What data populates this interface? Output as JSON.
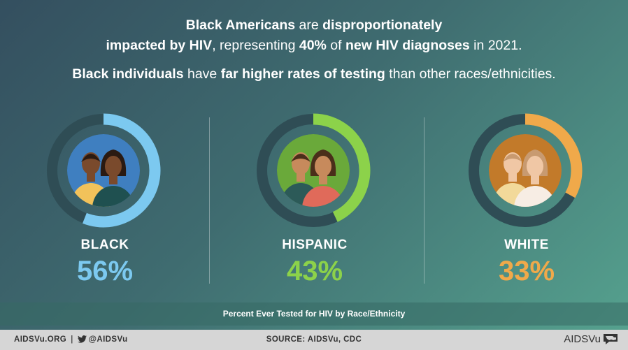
{
  "headline": {
    "line1_a": "Black Americans",
    "line1_b": " are ",
    "line1_c": "disproportionately",
    "line2_a": "impacted by HIV",
    "line2_b": ", representing ",
    "line2_c": "40%",
    "line2_d": " of ",
    "line2_e": "new HIV diagnoses",
    "line2_f": " in 2021.",
    "line3_a": "Black individuals",
    "line3_b": " have ",
    "line3_c": "far higher rates of testing",
    "line3_d": " than other races/ethnicities."
  },
  "chart_data": {
    "type": "pie",
    "title": "Percent Ever Tested for HIV by Race/Ethnicity",
    "categories": [
      "BLACK",
      "HISPANIC",
      "WHITE"
    ],
    "values": [
      56,
      43,
      33
    ],
    "value_labels": [
      "56%",
      "43%",
      "33%"
    ],
    "unit": "%",
    "colors": [
      "#7cc9f0",
      "#8cd24a",
      "#f0a94a"
    ],
    "track_color": "#2f4d55",
    "inner_colors": [
      "#3f7fc0",
      "#6aa93a",
      "#c27a2a"
    ]
  },
  "footer": {
    "site": "AIDSVu.ORG",
    "separator": "|",
    "twitter": "@AIDSVu",
    "source": "SOURCE: AIDSVu, CDC",
    "brand": "AIDSVu"
  },
  "icons": {
    "twitter": "bird-icon",
    "brand_logo": "map-speech-bubble-icon"
  }
}
